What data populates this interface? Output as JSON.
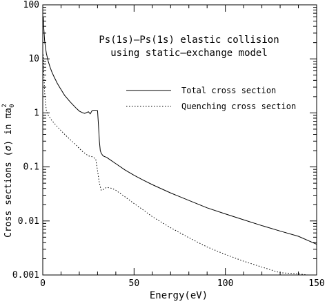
{
  "chart_data": {
    "type": "line",
    "title": "Ps(1s)–Ps(1s) elastic collision",
    "subtitle": "using static–exchange model",
    "xlabel": "Energy(eV)",
    "ylabel_parts": [
      "Cross sections (",
      "σ",
      ") in ",
      "πa",
      "0",
      "2"
    ],
    "xlim": [
      0,
      150
    ],
    "ylim": [
      0.001,
      100
    ],
    "yscale": "log",
    "x_ticks": [
      "0",
      "50",
      "100",
      "150"
    ],
    "x_tick_values": [
      0,
      50,
      100,
      150
    ],
    "y_ticks": [
      "0.001",
      "0.01",
      "0.1",
      "1",
      "10",
      "100"
    ],
    "y_tick_values": [
      0.001,
      0.01,
      0.1,
      1,
      10,
      100
    ],
    "grid": false,
    "legend_position": "top-right",
    "series": [
      {
        "name": "Total cross section",
        "style": "solid",
        "x": [
          0.3,
          0.5,
          1,
          1.5,
          2,
          3,
          4,
          5,
          6,
          8,
          10,
          12,
          15,
          18,
          20,
          22,
          23,
          25,
          26,
          27,
          28,
          29,
          30,
          30.5,
          31,
          31.5,
          32,
          33,
          35,
          37,
          40,
          45,
          50,
          55,
          60,
          70,
          80,
          90,
          100,
          110,
          120,
          130,
          140,
          150
        ],
        "y": [
          60,
          40,
          22,
          16,
          12.5,
          9,
          7,
          5.7,
          4.8,
          3.5,
          2.7,
          2.1,
          1.6,
          1.25,
          1.08,
          1.0,
          0.98,
          1.05,
          0.96,
          1.1,
          1.12,
          1.12,
          1.1,
          0.6,
          0.3,
          0.2,
          0.18,
          0.16,
          0.15,
          0.135,
          0.115,
          0.088,
          0.07,
          0.057,
          0.047,
          0.033,
          0.024,
          0.0175,
          0.0135,
          0.0105,
          0.0082,
          0.0065,
          0.0052,
          0.0037
        ]
      },
      {
        "name": "Quenching cross section",
        "style": "dotted",
        "x": [
          0.3,
          0.5,
          1,
          1.5,
          2,
          3,
          4,
          5,
          7,
          10,
          12,
          15,
          18,
          20,
          22,
          25,
          27,
          29,
          30,
          31,
          32,
          33,
          35,
          38,
          40,
          45,
          50,
          55,
          60,
          70,
          80,
          90,
          100,
          110,
          120,
          130,
          140,
          145,
          150
        ],
        "y": [
          12,
          6,
          2.5,
          1.5,
          1.1,
          0.9,
          0.8,
          0.72,
          0.6,
          0.47,
          0.4,
          0.32,
          0.26,
          0.22,
          0.19,
          0.16,
          0.155,
          0.14,
          0.085,
          0.05,
          0.037,
          0.038,
          0.042,
          0.04,
          0.037,
          0.028,
          0.021,
          0.016,
          0.012,
          0.0075,
          0.0049,
          0.0033,
          0.0024,
          0.0018,
          0.0014,
          0.0011,
          0.00105,
          0.001,
          0.001
        ]
      }
    ]
  }
}
